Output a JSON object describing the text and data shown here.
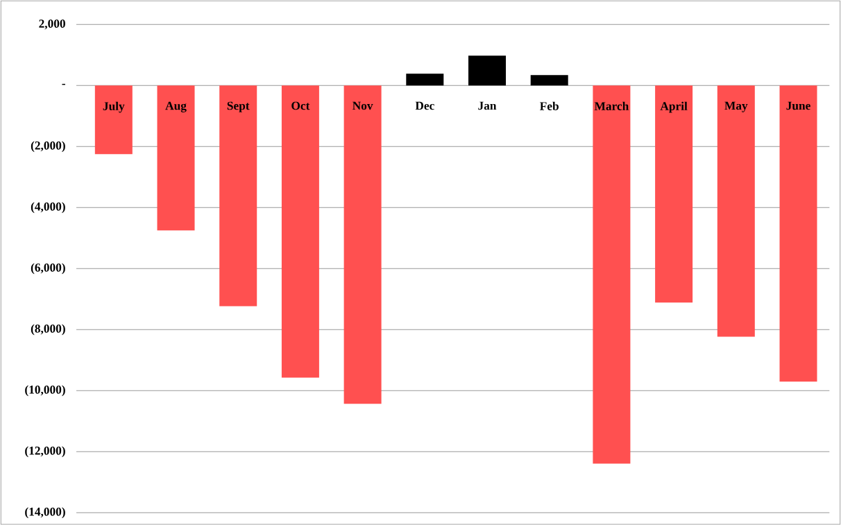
{
  "chart_data": {
    "type": "bar",
    "categories": [
      "July",
      "Aug",
      "Sept",
      "Oct",
      "Nov",
      "Dec",
      "Jan",
      "Feb",
      "March",
      "April",
      "May",
      "June"
    ],
    "values": [
      -2250,
      -4750,
      -7230,
      -9570,
      -10430,
      390,
      980,
      340,
      -12390,
      -7110,
      -8230,
      -9700
    ],
    "colors": [
      "#ff5050",
      "#ff5050",
      "#ff5050",
      "#ff5050",
      "#ff5050",
      "#000000",
      "#000000",
      "#000000",
      "#ff5050",
      "#ff5050",
      "#ff5050",
      "#ff5050"
    ],
    "ylim": [
      -14000,
      2000
    ],
    "yticks": [
      {
        "value": 2000,
        "label": "2,000"
      },
      {
        "value": 0,
        "label": "-"
      },
      {
        "value": -2000,
        "label": "(2,000)"
      },
      {
        "value": -4000,
        "label": "(4,000)"
      },
      {
        "value": -6000,
        "label": "(6,000)"
      },
      {
        "value": -8000,
        "label": "(8,000)"
      },
      {
        "value": -10000,
        "label": "(10,000)"
      },
      {
        "value": -12000,
        "label": "(12,000)"
      },
      {
        "value": -14000,
        "label": "(14,000)"
      }
    ],
    "grid": "y"
  }
}
